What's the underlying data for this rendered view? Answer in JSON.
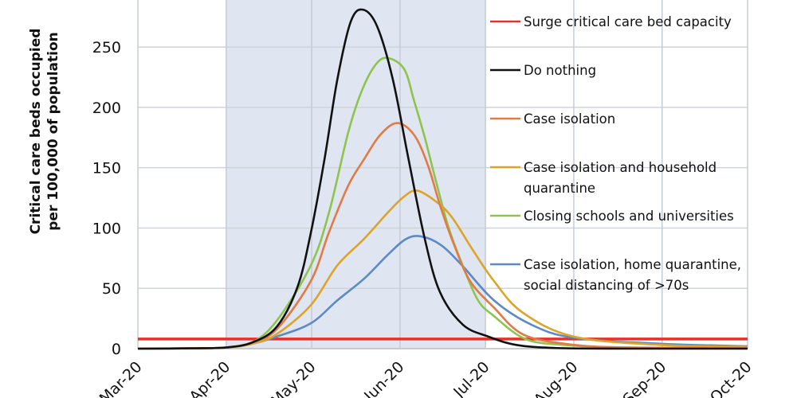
{
  "chart_data": {
    "type": "line",
    "title": "",
    "xlabel": "",
    "ylabel": [
      "Critical care beds occupied",
      "per 100,000 of population"
    ],
    "x_unit": "days since 1 Mar 2020",
    "xlim": [
      0,
      214
    ],
    "ylim": [
      0,
      289
    ],
    "x_ticks": [
      {
        "day": 0,
        "label": "Mar-20"
      },
      {
        "day": 31,
        "label": "Apr-20"
      },
      {
        "day": 61,
        "label": "May-20"
      },
      {
        "day": 92,
        "label": "Jun-20"
      },
      {
        "day": 122,
        "label": "Jul-20"
      },
      {
        "day": 153,
        "label": "Aug-20"
      },
      {
        "day": 184,
        "label": "Sep-20"
      },
      {
        "day": 214,
        "label": "Oct-20"
      }
    ],
    "y_ticks": [
      0,
      50,
      100,
      150,
      200,
      250
    ],
    "grid": true,
    "shaded_period": {
      "start_day": 31,
      "end_day": 122,
      "color": "#dfe5f1"
    },
    "legend_placement": "right (inside plot)",
    "capacity": {
      "name": "Surge critical care bed capacity",
      "value": 8,
      "color": "#e8302a"
    },
    "series": [
      {
        "name": "Do nothing",
        "color": "#111111",
        "points": [
          [
            0,
            0
          ],
          [
            20,
            0.3
          ],
          [
            31,
            1
          ],
          [
            40,
            5
          ],
          [
            48.7,
            18
          ],
          [
            56,
            51
          ],
          [
            60.7,
            96
          ],
          [
            65.5,
            157
          ],
          [
            70,
            223
          ],
          [
            74.7,
            271
          ],
          [
            79,
            281
          ],
          [
            84,
            267
          ],
          [
            89.5,
            223
          ],
          [
            95,
            157
          ],
          [
            100.7,
            91
          ],
          [
            106,
            47
          ],
          [
            114,
            20
          ],
          [
            123,
            10
          ],
          [
            133,
            3
          ],
          [
            147,
            0.5
          ],
          [
            170,
            0
          ],
          [
            214,
            0
          ]
        ]
      },
      {
        "name": "Case isolation",
        "color": "#e07b45",
        "points": [
          [
            0,
            0
          ],
          [
            20,
            0.3
          ],
          [
            31,
            1
          ],
          [
            40,
            5
          ],
          [
            48.7,
            16
          ],
          [
            60.7,
            56
          ],
          [
            67,
            96
          ],
          [
            73.8,
            135
          ],
          [
            79.4,
            157
          ],
          [
            85,
            177
          ],
          [
            91,
            187
          ],
          [
            97,
            177
          ],
          [
            101.8,
            152
          ],
          [
            106.3,
            117
          ],
          [
            111,
            86
          ],
          [
            116.6,
            56
          ],
          [
            125,
            34
          ],
          [
            135,
            12
          ],
          [
            150,
            4
          ],
          [
            170,
            1
          ],
          [
            214,
            0.5
          ]
        ]
      },
      {
        "name": "Case isolation and household quarantine",
        "color": "#dca42a",
        "points": [
          [
            0,
            0
          ],
          [
            20,
            0.3
          ],
          [
            31,
            1
          ],
          [
            40,
            4
          ],
          [
            48.7,
            12
          ],
          [
            60.7,
            36
          ],
          [
            70,
            69
          ],
          [
            79.4,
            91
          ],
          [
            87.8,
            113
          ],
          [
            93.4,
            126
          ],
          [
            98,
            131
          ],
          [
            104.6,
            122
          ],
          [
            110.2,
            109
          ],
          [
            117.5,
            82
          ],
          [
            125,
            56
          ],
          [
            135,
            30
          ],
          [
            153,
            10
          ],
          [
            184,
            3
          ],
          [
            214,
            1.5
          ]
        ]
      },
      {
        "name": "Closing schools and universities",
        "color": "#8ec44d",
        "points": [
          [
            0,
            0
          ],
          [
            20,
            0.3
          ],
          [
            31,
            1
          ],
          [
            40,
            5
          ],
          [
            48.7,
            23
          ],
          [
            60.7,
            69
          ],
          [
            67.1,
            113
          ],
          [
            73.8,
            179
          ],
          [
            78.3,
            212
          ],
          [
            83,
            234
          ],
          [
            87.3,
            241
          ],
          [
            93.4,
            232
          ],
          [
            97,
            205
          ],
          [
            100.7,
            175
          ],
          [
            104.6,
            139
          ],
          [
            109.1,
            100
          ],
          [
            114,
            69
          ],
          [
            119.4,
            40
          ],
          [
            125,
            27
          ],
          [
            136,
            8
          ],
          [
            150,
            3
          ],
          [
            170,
            1
          ],
          [
            214,
            0.5
          ]
        ]
      },
      {
        "name": "Case isolation, home quarantine, social distancing of >70s",
        "color": "#5b8ac6",
        "points": [
          [
            0,
            0
          ],
          [
            20,
            0.3
          ],
          [
            31,
            1
          ],
          [
            40,
            4
          ],
          [
            48.7,
            10
          ],
          [
            60.7,
            21
          ],
          [
            70,
            40
          ],
          [
            79.4,
            58
          ],
          [
            87.8,
            78
          ],
          [
            94.2,
            91
          ],
          [
            99.5,
            93
          ],
          [
            106.3,
            86
          ],
          [
            113.8,
            69
          ],
          [
            125,
            40
          ],
          [
            138,
            20
          ],
          [
            153,
            9
          ],
          [
            184,
            4
          ],
          [
            214,
            2
          ]
        ]
      }
    ],
    "legend": [
      {
        "label": "Surge critical care bed capacity",
        "color": "#e8302a"
      },
      {
        "label": "Do nothing",
        "color": "#111111"
      },
      {
        "label": "Case isolation",
        "color": "#e07b45"
      },
      {
        "label": [
          "Case isolation and household",
          "quarantine"
        ],
        "color": "#dca42a"
      },
      {
        "label": "Closing schools and universities",
        "color": "#8ec44d"
      },
      {
        "label": [
          "Case isolation, home quarantine,",
          "social distancing of >70s"
        ],
        "color": "#5b8ac6"
      }
    ]
  }
}
